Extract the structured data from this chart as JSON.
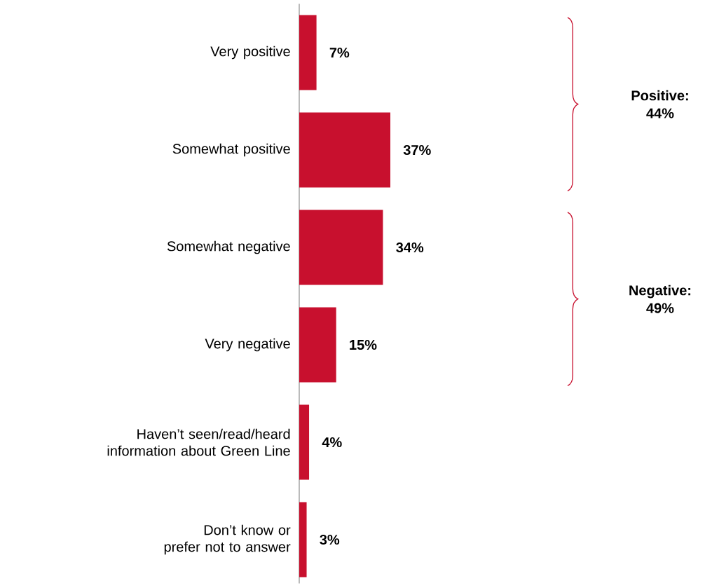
{
  "chart_data": {
    "type": "bar",
    "orientation": "horizontal",
    "categories": [
      "Very positive",
      "Somewhat positive",
      "Somewhat negative",
      "Very negative",
      "Haven’t seen/read/heard information about Green Line",
      "Don’t know or prefer not to answer"
    ],
    "values": [
      7,
      37,
      34,
      15,
      4,
      3
    ],
    "value_labels": [
      "7%",
      "37%",
      "34%",
      "15%",
      "4%",
      "3%"
    ],
    "color": "#c8102e",
    "annotations": [
      "Positive: 44%",
      "Negative: 49%"
    ]
  }
}
